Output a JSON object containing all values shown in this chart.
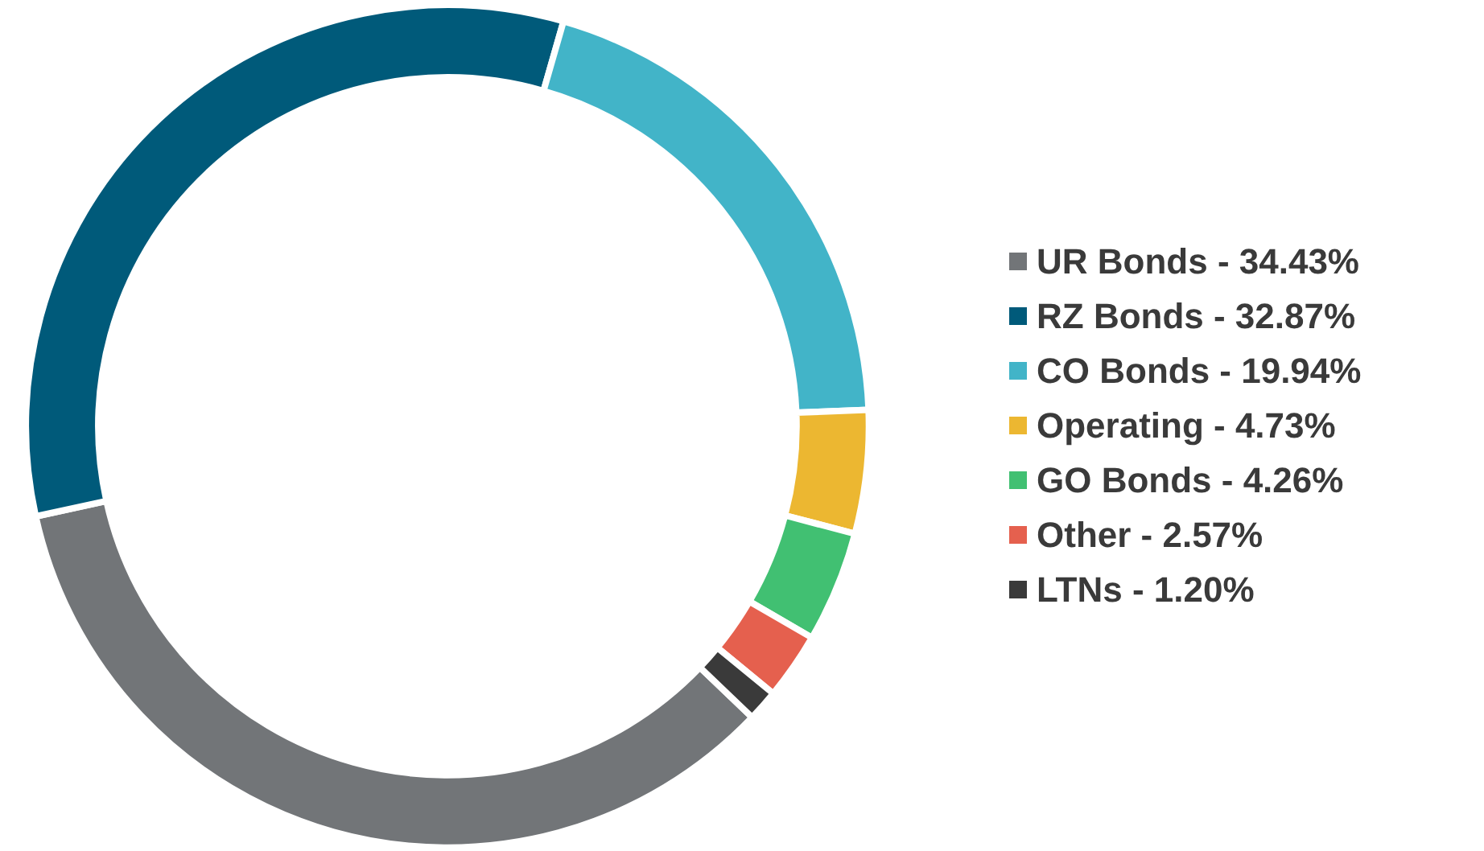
{
  "chart_data": {
    "type": "donut",
    "categories": [
      "UR Bonds - 34.43%",
      "RZ Bonds - 32.87%",
      "CO Bonds - 19.94%",
      "Operating - 4.73%",
      "GO Bonds - 4.26%",
      "Other - 2.57%",
      "LTNs - 1.20%"
    ],
    "values": [
      34.43,
      32.87,
      19.94,
      4.73,
      4.26,
      2.57,
      1.2
    ],
    "colors": [
      "#727578",
      "#005a7a",
      "#42b4c8",
      "#ecb731",
      "#41c072",
      "#e5604e",
      "#3a3a3a"
    ],
    "legend": "right"
  }
}
